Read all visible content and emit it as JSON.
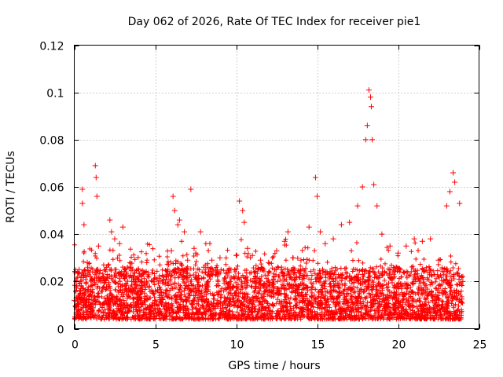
{
  "chart_data": {
    "type": "scatter",
    "title": "Day 062 of 2026, Rate Of TEC Index for receiver pie1",
    "xlabel": "GPS time / hours",
    "ylabel": "ROTI / TECUs",
    "xlim": [
      0,
      25
    ],
    "ylim": [
      0,
      0.12
    ],
    "x_ticks": [
      0,
      5,
      10,
      15,
      20,
      25
    ],
    "x_tick_labels": [
      "0",
      "5",
      "10",
      "15",
      "20",
      "25"
    ],
    "y_ticks": [
      0,
      0.02,
      0.04,
      0.06,
      0.08,
      0.1,
      0.12
    ],
    "y_tick_labels": [
      "0",
      "0.02",
      "0.04",
      "0.06",
      "0.08",
      "0.1",
      "0.12"
    ],
    "grid": true,
    "marker": "plus",
    "point_color": "#ff0000",
    "series": [
      {
        "name": "pie1 ROTI",
        "x": [
          0.0,
          0.3,
          0.5,
          0.5,
          0.6,
          0.8,
          1.0,
          1.3,
          1.35,
          1.4,
          1.5,
          2.0,
          2.2,
          2.3,
          2.5,
          2.8,
          3.0,
          3.2,
          3.5,
          3.8,
          4.0,
          4.5,
          5.0,
          5.5,
          6.0,
          6.1,
          6.2,
          6.4,
          6.5,
          6.8,
          7.0,
          7.2,
          7.4,
          7.5,
          7.8,
          8.0,
          8.3,
          8.5,
          9.0,
          9.5,
          10.0,
          10.2,
          10.4,
          10.5,
          10.7,
          11.0,
          11.5,
          12.0,
          12.5,
          13.0,
          13.2,
          13.5,
          14.0,
          14.5,
          14.9,
          15.0,
          15.2,
          15.5,
          16.0,
          16.5,
          17.0,
          17.5,
          17.8,
          18.0,
          18.1,
          18.2,
          18.3,
          18.35,
          18.4,
          18.5,
          18.7,
          19.0,
          19.5,
          20.0,
          20.5,
          21.0,
          21.5,
          22.0,
          22.5,
          23.0,
          23.2,
          23.4,
          23.5,
          23.8,
          24.0
        ],
        "y": [
          0.012,
          0.025,
          0.059,
          0.053,
          0.044,
          0.028,
          0.022,
          0.069,
          0.064,
          0.056,
          0.035,
          0.026,
          0.046,
          0.041,
          0.038,
          0.036,
          0.043,
          0.024,
          0.026,
          0.021,
          0.022,
          0.019,
          0.016,
          0.022,
          0.033,
          0.056,
          0.05,
          0.044,
          0.046,
          0.041,
          0.029,
          0.059,
          0.034,
          0.032,
          0.041,
          0.026,
          0.024,
          0.029,
          0.03,
          0.024,
          0.031,
          0.054,
          0.05,
          0.045,
          0.034,
          0.031,
          0.029,
          0.028,
          0.033,
          0.037,
          0.041,
          0.03,
          0.029,
          0.043,
          0.064,
          0.056,
          0.041,
          0.036,
          0.038,
          0.044,
          0.045,
          0.052,
          0.06,
          0.08,
          0.086,
          0.101,
          0.098,
          0.094,
          0.08,
          0.061,
          0.052,
          0.04,
          0.035,
          0.032,
          0.035,
          0.038,
          0.037,
          0.038,
          0.029,
          0.052,
          0.058,
          0.066,
          0.062,
          0.053,
          0.02
        ]
      }
    ]
  }
}
